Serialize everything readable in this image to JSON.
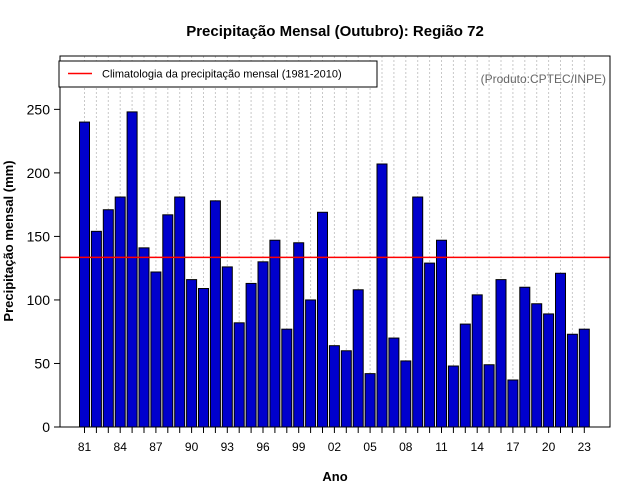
{
  "chart_data": {
    "type": "bar",
    "title": "Precipitação Mensal (Outubro): Região 72",
    "xlabel": "Ano",
    "ylabel": "Precipitação mensal (mm)",
    "source": "(Produto:CPTEC/INPE)",
    "ylim": [
      0,
      292
    ],
    "yticks": [
      0,
      50,
      100,
      150,
      200,
      250
    ],
    "years": [
      1981,
      1982,
      1983,
      1984,
      1985,
      1986,
      1987,
      1988,
      1989,
      1990,
      1991,
      1992,
      1993,
      1994,
      1995,
      1996,
      1997,
      1998,
      1999,
      2000,
      2001,
      2002,
      2003,
      2004,
      2005,
      2006,
      2007,
      2008,
      2009,
      2010,
      2011,
      2012,
      2013,
      2014,
      2015,
      2016,
      2017,
      2018,
      2019,
      2020,
      2021,
      2022,
      2023
    ],
    "categories": [
      "81",
      "82",
      "83",
      "84",
      "85",
      "86",
      "87",
      "88",
      "89",
      "90",
      "91",
      "92",
      "93",
      "94",
      "95",
      "96",
      "97",
      "98",
      "99",
      "00",
      "01",
      "02",
      "03",
      "04",
      "05",
      "06",
      "07",
      "08",
      "09",
      "10",
      "11",
      "12",
      "13",
      "14",
      "15",
      "16",
      "17",
      "18",
      "19",
      "20",
      "21",
      "22",
      "23"
    ],
    "xtick_labels": [
      "81",
      "84",
      "87",
      "90",
      "93",
      "96",
      "99",
      "02",
      "05",
      "08",
      "11",
      "14",
      "17",
      "20",
      "23"
    ],
    "values": [
      240,
      154,
      171,
      181,
      248,
      141,
      122,
      167,
      181,
      116,
      109,
      178,
      126,
      82,
      113,
      130,
      147,
      77,
      145,
      100,
      169,
      64,
      60,
      108,
      42,
      207,
      70,
      52,
      181,
      129,
      147,
      48,
      81,
      104,
      49,
      116,
      37,
      110,
      97,
      89,
      121,
      73,
      77
    ],
    "bar_color": "#0000CD",
    "climatology": {
      "value": 133.5,
      "label": "Climatologia da precipitação mensal (1981-2010)",
      "color": "#FF0000"
    },
    "grid": true,
    "legend_position": "top-left"
  }
}
